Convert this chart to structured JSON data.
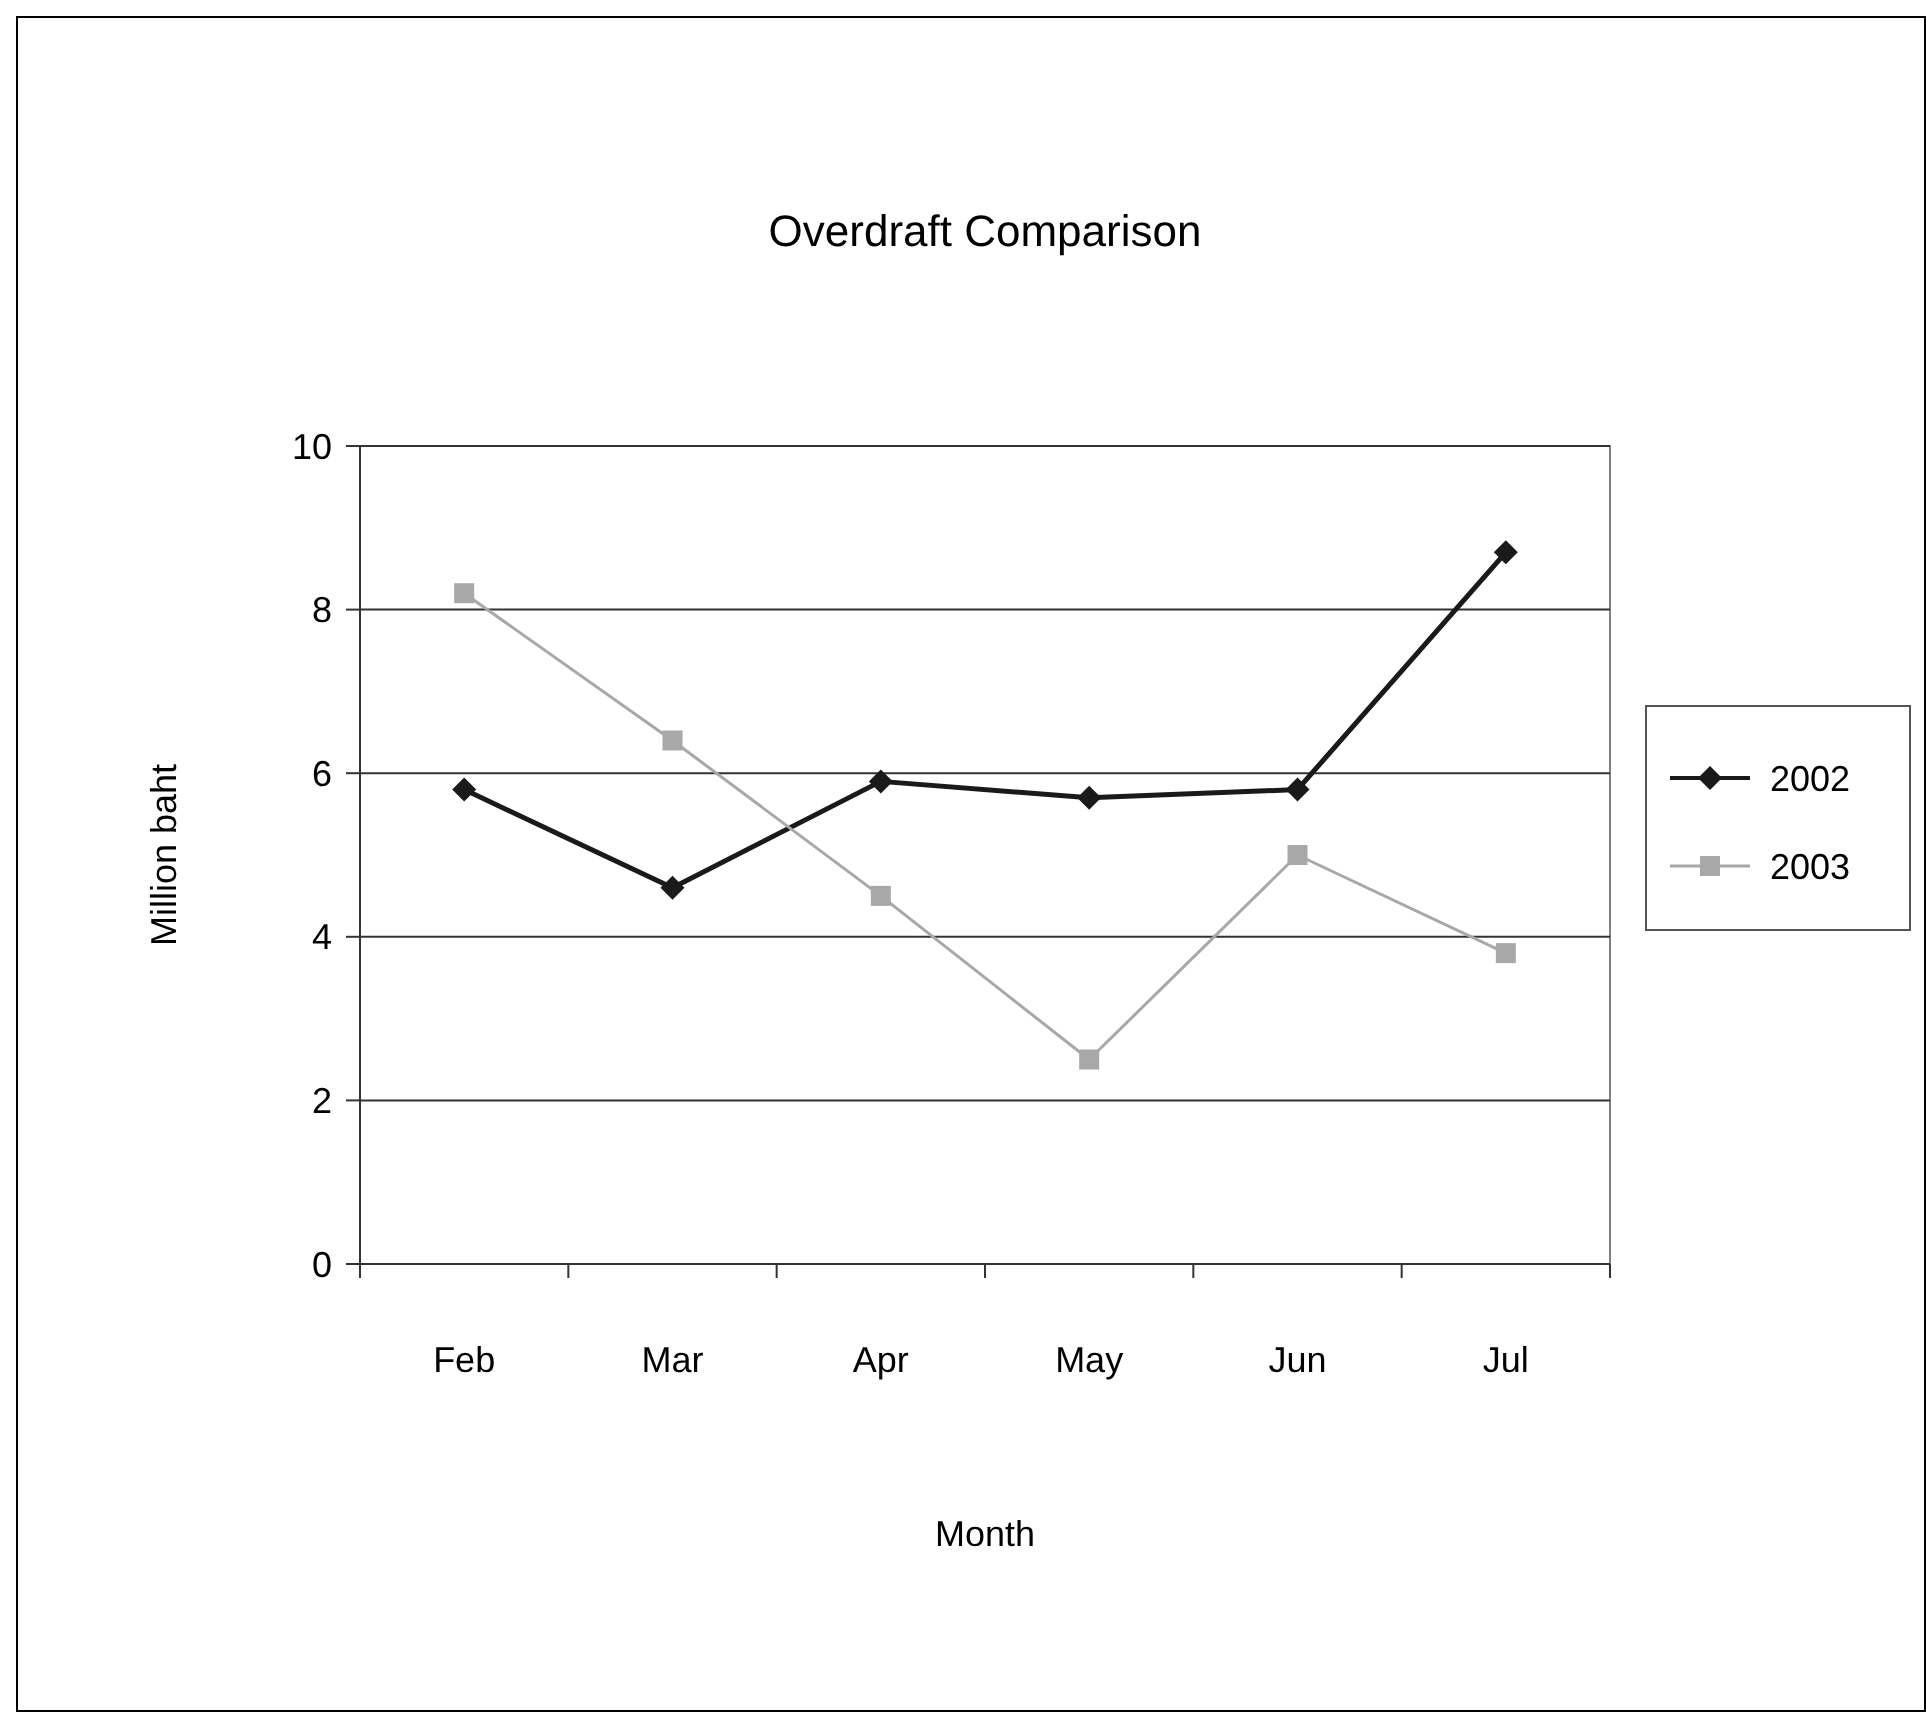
{
  "chart_data": {
    "type": "line",
    "title": "Overdraft Comparison",
    "xlabel": "Month",
    "ylabel": "Million baht",
    "categories": [
      "Feb",
      "Mar",
      "Apr",
      "May",
      "Jun",
      "Jul"
    ],
    "series": [
      {
        "name": "2002",
        "color": "#1a1a1a",
        "marker": "diamond",
        "values": [
          5.8,
          4.6,
          5.9,
          5.7,
          5.8,
          8.7
        ]
      },
      {
        "name": "2003",
        "color": "#a8a8a8",
        "marker": "square",
        "values": [
          8.2,
          6.4,
          4.5,
          2.5,
          5.0,
          3.8
        ]
      }
    ],
    "ylim": [
      0,
      10
    ],
    "yticks": [
      0,
      2,
      4,
      6,
      8,
      10
    ],
    "grid": "y",
    "legend": "right",
    "line_style": "solid"
  }
}
